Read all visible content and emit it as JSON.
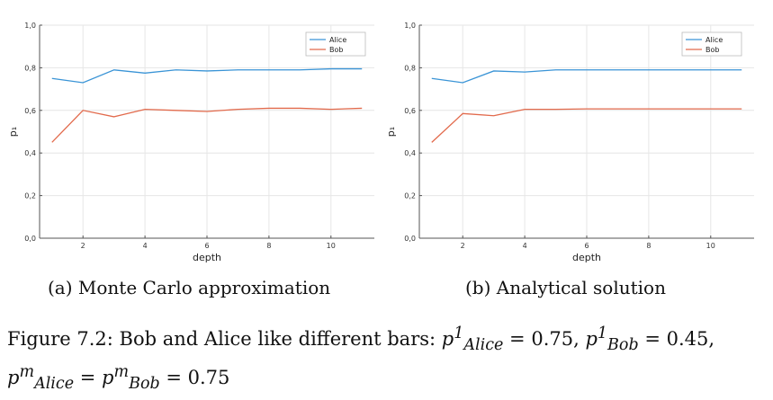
{
  "chart_data": [
    {
      "type": "line",
      "xlabel": "depth",
      "ylabel": "p₁",
      "xlim": [
        0.6,
        11.4
      ],
      "ylim": [
        0,
        1
      ],
      "x_ticks": [
        2,
        4,
        6,
        8,
        10
      ],
      "y_ticks": [
        0,
        0.2,
        0.4,
        0.6,
        0.8,
        1.0
      ],
      "y_tick_labels": [
        "0,0",
        "0,2",
        "0,4",
        "0,6",
        "0,8",
        "1,0"
      ],
      "grid": true,
      "legend_position": "top-right",
      "x": [
        1,
        2,
        3,
        4,
        5,
        6,
        7,
        8,
        9,
        10,
        11
      ],
      "series": [
        {
          "name": "Alice",
          "color": "#3a94d6",
          "values": [
            0.75,
            0.73,
            0.79,
            0.775,
            0.79,
            0.785,
            0.79,
            0.79,
            0.79,
            0.795,
            0.795
          ]
        },
        {
          "name": "Bob",
          "color": "#e26a4c",
          "values": [
            0.45,
            0.6,
            0.57,
            0.605,
            0.6,
            0.595,
            0.605,
            0.61,
            0.61,
            0.605,
            0.61
          ]
        }
      ],
      "subcaption": "(a) Monte Carlo approximation"
    },
    {
      "type": "line",
      "xlabel": "depth",
      "ylabel": "p₁",
      "xlim": [
        0.6,
        11.4
      ],
      "ylim": [
        0,
        1
      ],
      "x_ticks": [
        2,
        4,
        6,
        8,
        10
      ],
      "y_ticks": [
        0,
        0.2,
        0.4,
        0.6,
        0.8,
        1.0
      ],
      "y_tick_labels": [
        "0,0",
        "0,2",
        "0,4",
        "0,6",
        "0,8",
        "1,0"
      ],
      "grid": true,
      "legend_position": "top-right",
      "x": [
        1,
        2,
        3,
        4,
        5,
        6,
        7,
        8,
        9,
        10,
        11
      ],
      "series": [
        {
          "name": "Alice",
          "color": "#3a94d6",
          "values": [
            0.75,
            0.73,
            0.785,
            0.78,
            0.79,
            0.79,
            0.79,
            0.79,
            0.79,
            0.79,
            0.79
          ]
        },
        {
          "name": "Bob",
          "color": "#e26a4c",
          "values": [
            0.45,
            0.585,
            0.575,
            0.605,
            0.605,
            0.607,
            0.607,
            0.607,
            0.607,
            0.607,
            0.607
          ]
        }
      ],
      "subcaption": "(b) Analytical solution"
    }
  ],
  "figure_caption": {
    "prefix": "Figure 7.2: Bob and Alice like different bars:",
    "alice_value": "0.75",
    "bob_value": "0.45",
    "m_value": "0.75"
  }
}
